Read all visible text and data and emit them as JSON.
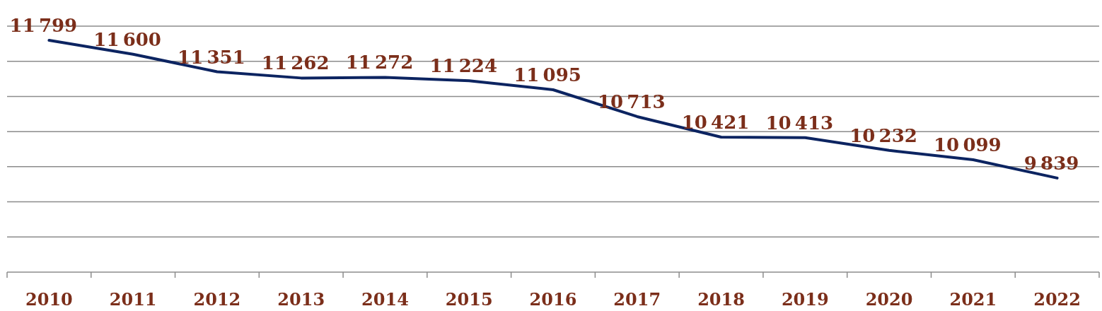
{
  "chart_data": {
    "type": "line",
    "categories": [
      "2010",
      "2011",
      "2012",
      "2013",
      "2014",
      "2015",
      "2016",
      "2017",
      "2018",
      "2019",
      "2020",
      "2021",
      "2022"
    ],
    "series": [
      {
        "color": "#0c2461",
        "values": [
          11799,
          11600,
          11351,
          11262,
          11272,
          11224,
          11095,
          10713,
          10421,
          10413,
          10232,
          10099,
          9839
        ]
      }
    ],
    "ylim": [
      8500,
      12000
    ],
    "yticks": [
      {
        "value": 9000,
        "label": null
      },
      {
        "value": 9500,
        "label": null
      },
      {
        "value": 10000,
        "label": null
      },
      {
        "value": 10500,
        "label": null
      },
      {
        "value": 11000,
        "label": null
      },
      {
        "value": 11500,
        "label": null
      },
      {
        "value": 12000,
        "label": null
      }
    ],
    "tick_labels": "x",
    "grid": "y",
    "data_labels": true,
    "marker": "none",
    "line_style": "solid"
  }
}
